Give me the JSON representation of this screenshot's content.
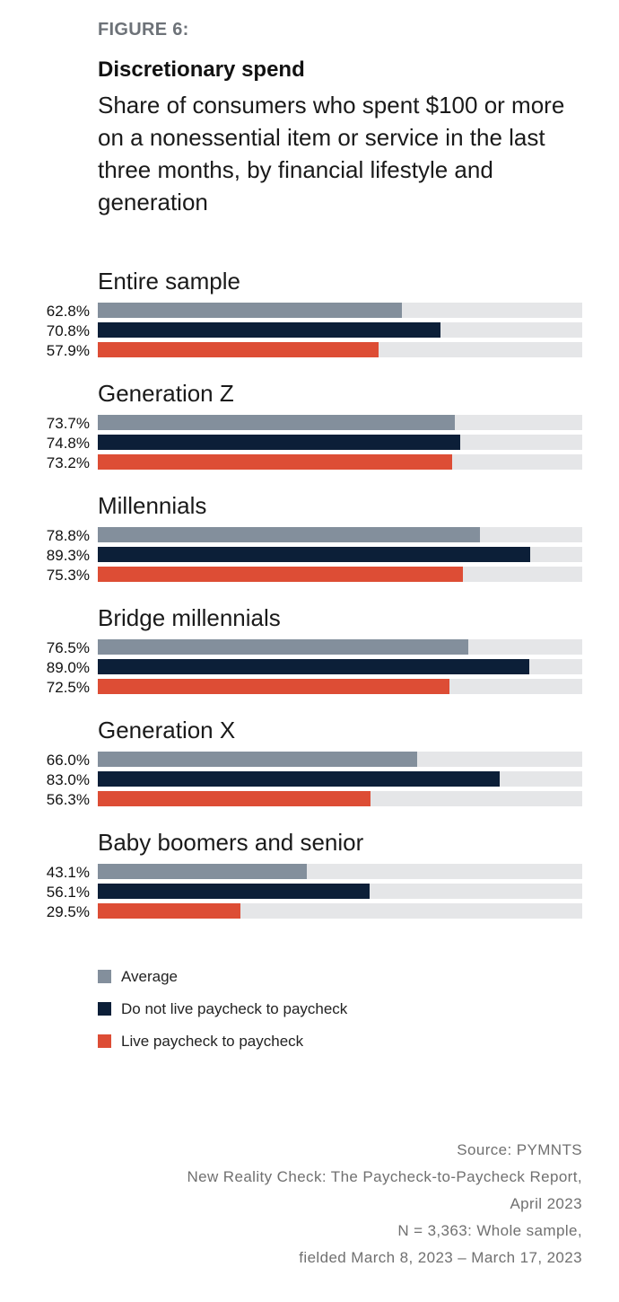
{
  "figure_label": "FIGURE 6:",
  "chart_data": {
    "type": "bar",
    "orientation": "horizontal",
    "title": "Discretionary spend",
    "subtitle": "Share of consumers who spent $100 or more on a nonessential item or service in the last three months, by financial lifestyle and generation",
    "xlim": [
      0,
      100
    ],
    "grid": false,
    "legend_placement": "bottom",
    "categories": [
      "Entire sample",
      "Generation Z",
      "Millennials",
      "Bridge millennials",
      "Generation X",
      "Baby boomers and senior"
    ],
    "series": [
      {
        "name": "Average",
        "color": "#838f9c",
        "values": [
          62.8,
          73.7,
          78.8,
          76.5,
          66.0,
          43.1
        ],
        "labels": [
          "62.8%",
          "73.7%",
          "78.8%",
          "76.5%",
          "66.0%",
          "43.1%"
        ]
      },
      {
        "name": "Do not live paycheck to paycheck",
        "color": "#0c1f38",
        "values": [
          70.8,
          74.8,
          89.3,
          89.0,
          83.0,
          56.1
        ],
        "labels": [
          "70.8%",
          "74.8%",
          "89.3%",
          "89.0%",
          "83.0%",
          "56.1%"
        ]
      },
      {
        "name": "Live paycheck to paycheck",
        "color": "#dd4d35",
        "values": [
          57.9,
          73.2,
          75.3,
          72.5,
          56.3,
          29.5
        ],
        "labels": [
          "57.9%",
          "73.2%",
          "75.3%",
          "72.5%",
          "56.3%",
          "29.5%"
        ]
      }
    ],
    "track_color": "#e5e6e8"
  },
  "source": [
    "Source: PYMNTS",
    "New Reality Check: The Paycheck-to-Paycheck Report,",
    "April 2023",
    "N = 3,363: Whole sample,",
    "fielded March 8, 2023 – March 17, 2023"
  ]
}
